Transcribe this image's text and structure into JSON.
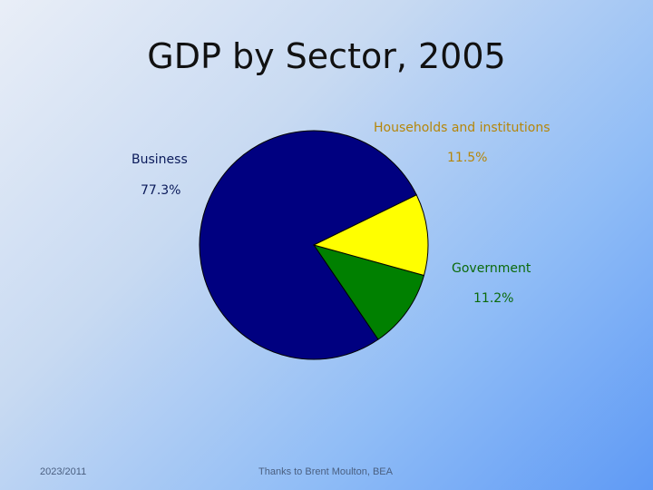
{
  "chart_data": {
    "type": "pie",
    "title": "GDP by Sector, 2005",
    "slices": [
      {
        "name": "Business",
        "value": 77.3,
        "label": "77.3%",
        "color": "#000080"
      },
      {
        "name": "Households and institutions",
        "value": 11.5,
        "label": "11.5%",
        "color": "#ffff00"
      },
      {
        "name": "Government",
        "value": 11.2,
        "label": "11.2%",
        "color": "#008000"
      }
    ],
    "label_colors": {
      "Business": "#0a1a5a",
      "Households and institutions": "#b5860a",
      "Government": "#0b6a0b"
    }
  },
  "footer": {
    "date": "2023/2011",
    "credit": "Thanks to Brent Moulton, BEA"
  }
}
